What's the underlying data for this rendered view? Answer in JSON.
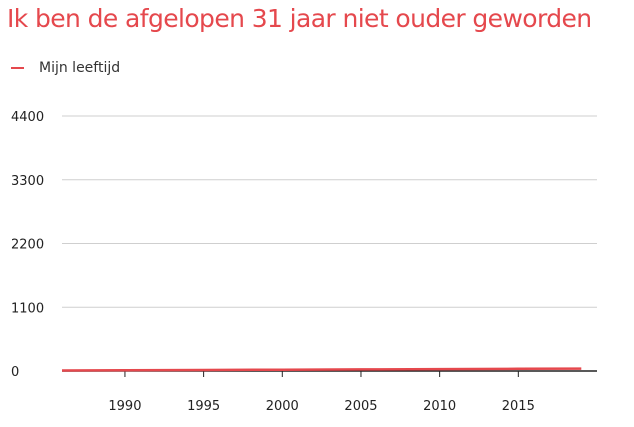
{
  "chart_data": {
    "type": "line",
    "title": "Ik ben de afgelopen 31 jaar niet ouder geworden",
    "xlabel": "",
    "ylabel": "",
    "xlim": [
      1986,
      2020
    ],
    "ylim": [
      0,
      4400
    ],
    "yticks": [
      "4400",
      "3300",
      "2200",
      "1100",
      "0"
    ],
    "xticks": [
      "1990",
      "1995",
      "2000",
      "2005",
      "2010",
      "2015"
    ],
    "grid": true,
    "legend_position": "top-left",
    "series": [
      {
        "name": "Mijn leeftijd",
        "color": "#e5484d",
        "x": [
          1986,
          1990,
          1995,
          2000,
          2005,
          2010,
          2015,
          2019
        ],
        "y": [
          9,
          13,
          18,
          23,
          28,
          33,
          38,
          42
        ]
      }
    ]
  }
}
